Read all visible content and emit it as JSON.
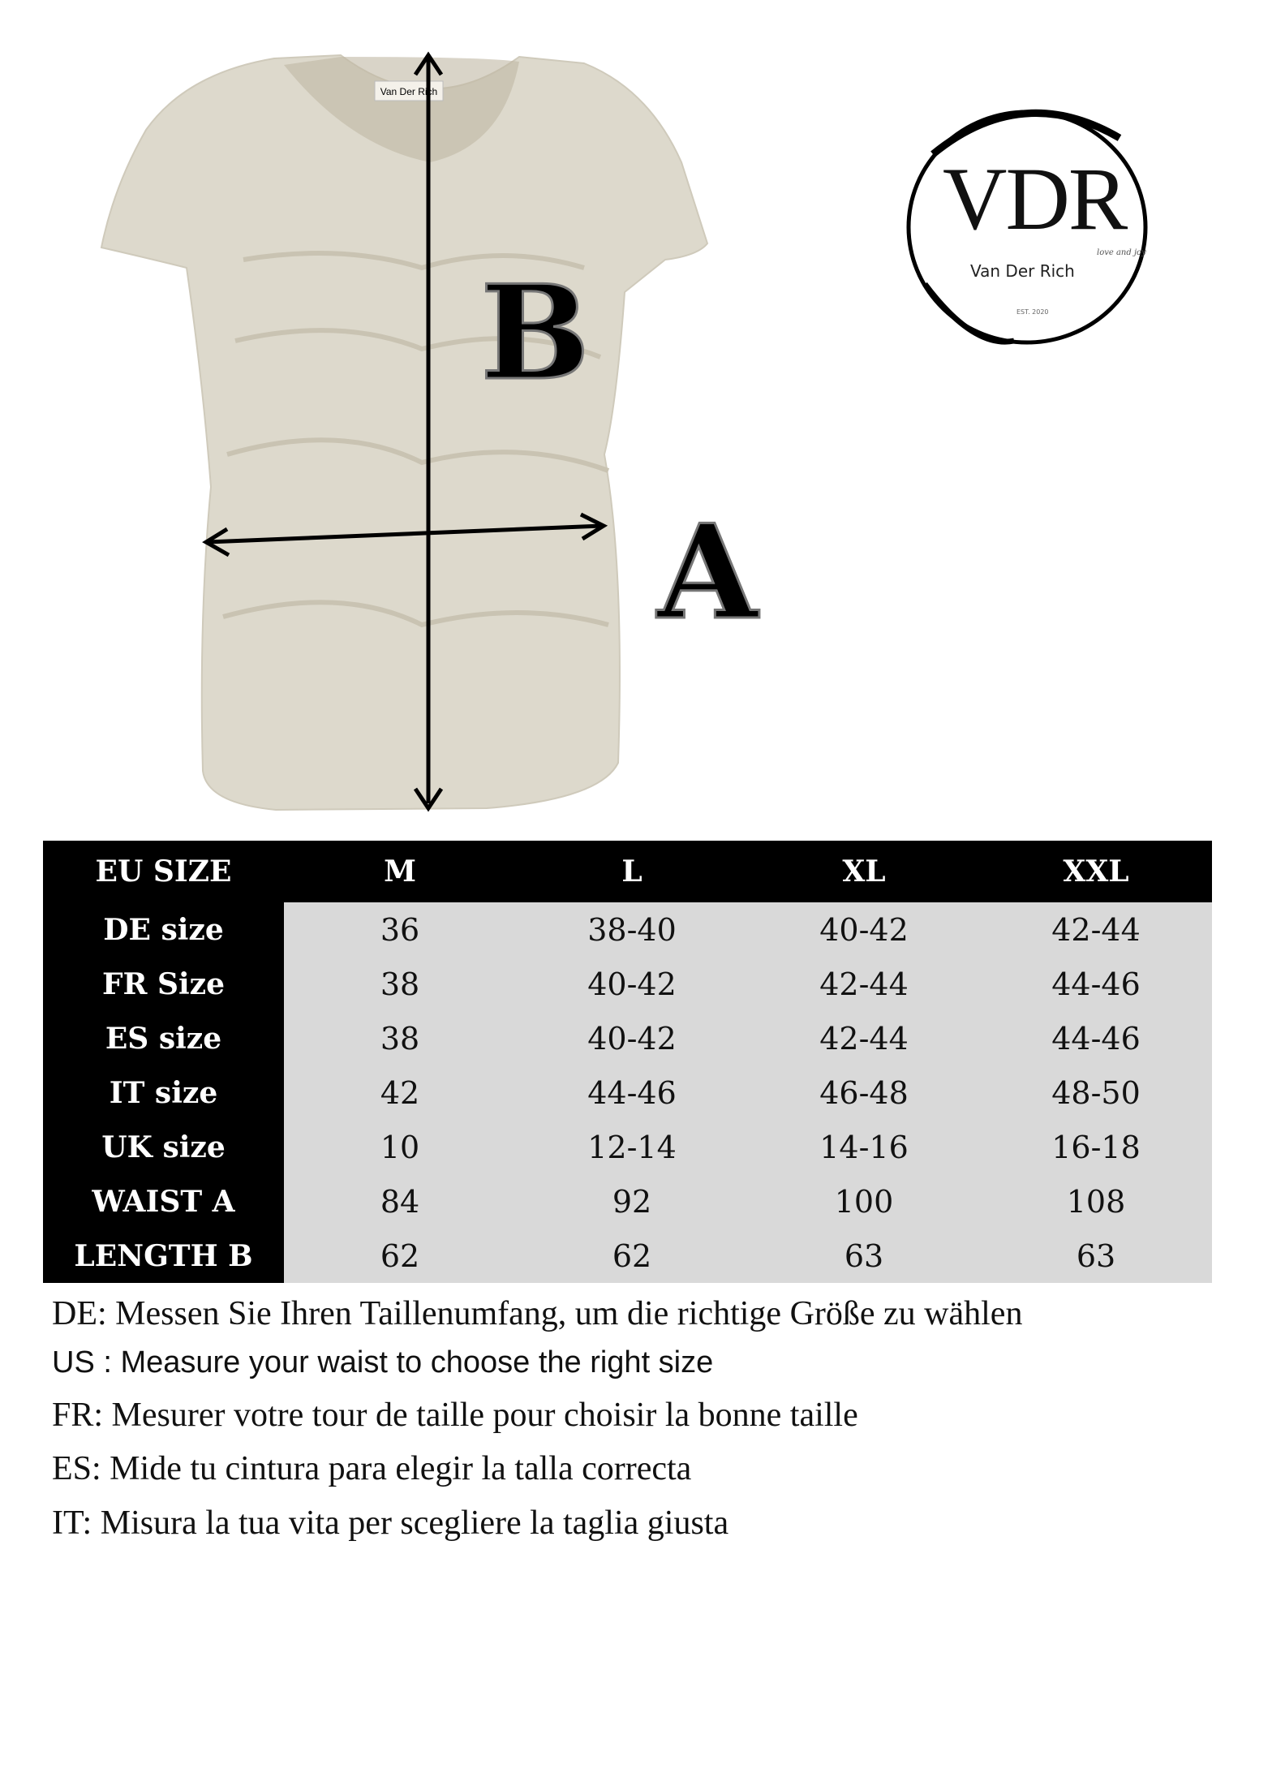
{
  "product_image": {
    "garment_label": "Van Der Rich",
    "garment_color": "#ddd9cc",
    "markers": {
      "a": "A",
      "b": "B"
    }
  },
  "logo": {
    "monogram": "VDR",
    "brand": "Van Der Rich",
    "tagline": "love and joy",
    "established": "EST. 2020"
  },
  "size_table": {
    "header": [
      "EU SIZE",
      "M",
      "L",
      "XL",
      "XXL"
    ],
    "rows": [
      {
        "label": "DE size",
        "values": [
          "36",
          "38-40",
          "40-42",
          "42-44"
        ]
      },
      {
        "label": "FR Size",
        "values": [
          "38",
          "40-42",
          "42-44",
          "44-46"
        ]
      },
      {
        "label": "ES size",
        "values": [
          "38",
          "40-42",
          "42-44",
          "44-46"
        ]
      },
      {
        "label": "IT size",
        "values": [
          "42",
          "44-46",
          "46-48",
          "48-50"
        ]
      },
      {
        "label": "UK size",
        "values": [
          "10",
          "12-14",
          "14-16",
          "16-18"
        ]
      },
      {
        "label": "WAIST A",
        "values": [
          "84",
          "92",
          "100",
          "108"
        ]
      },
      {
        "label": "LENGTH B",
        "values": [
          "62",
          "62",
          "63",
          "63"
        ]
      }
    ]
  },
  "notes": {
    "de": "DE: Messen Sie Ihren Taillenumfang, um die richtige Größe zu wählen",
    "us": "US : Measure your waist to choose the right size",
    "fr": "FR: Mesurer votre tour de taille pour choisir la bonne taille",
    "es": "ES: Mide tu cintura para elegir la talla correcta",
    "it": "IT: Misura la tua vita per scegliere la taglia giusta"
  }
}
